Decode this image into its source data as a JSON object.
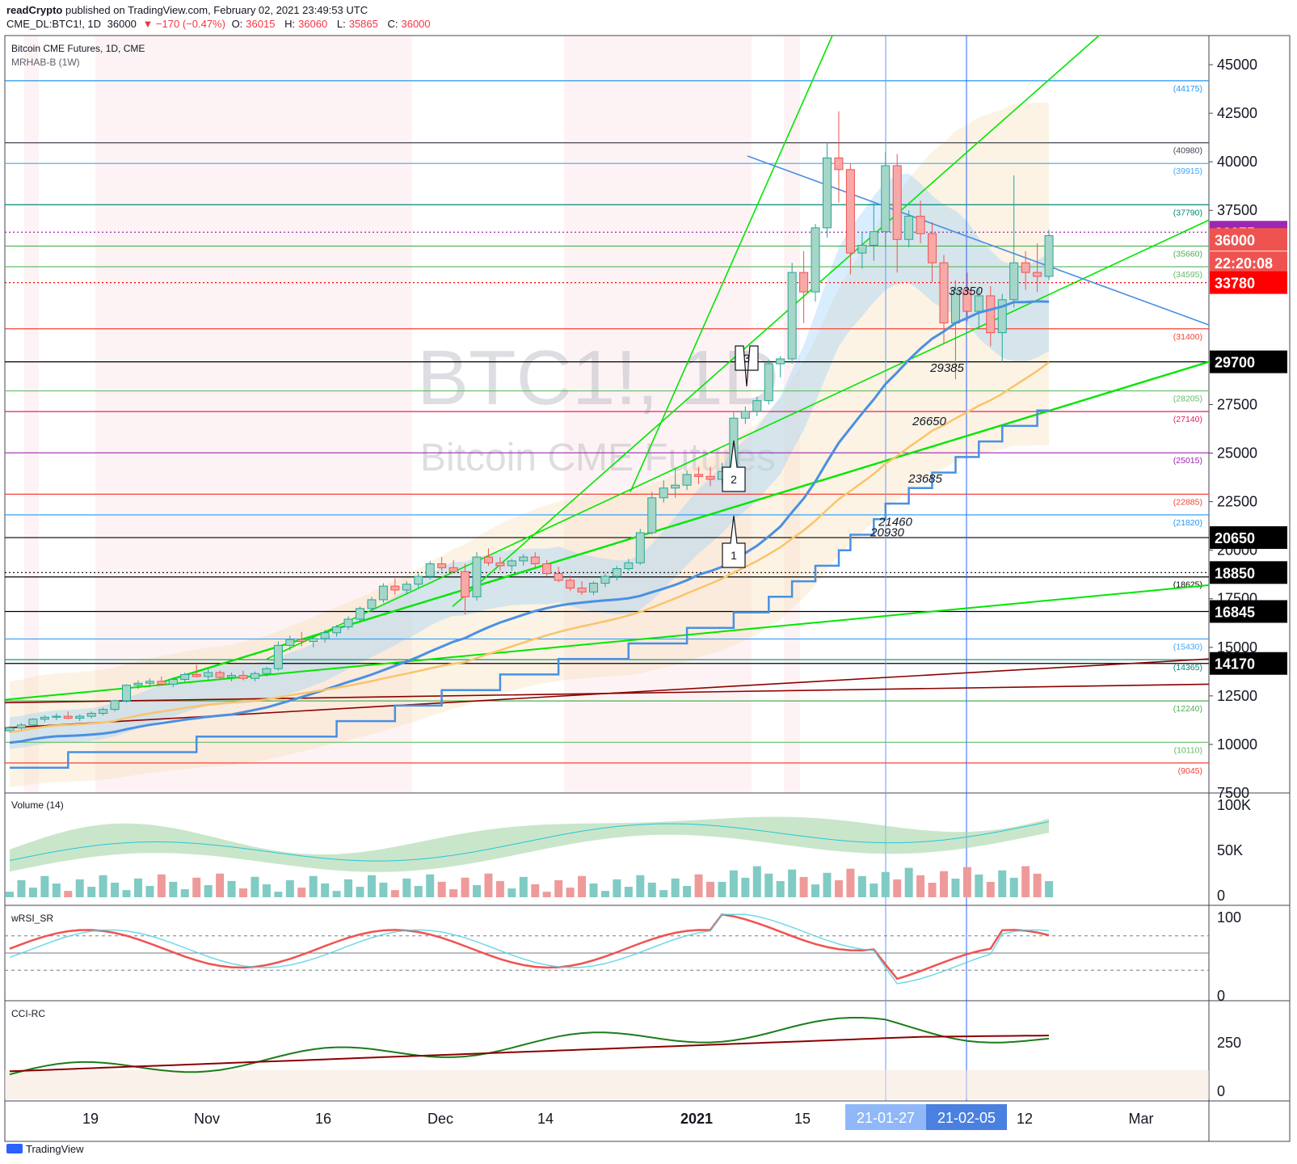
{
  "header": {
    "publisher": "readCrypto",
    "published_text": "published on TradingView.com, February 02, 2021 23:49:53 UTC",
    "symbol_line": "CME_DL:BTC1!, 1D",
    "last": "36000",
    "change": "▼ −170 (−0.47%)",
    "o_label": "O:",
    "o": "36015",
    "h_label": "H:",
    "h": "36060",
    "l_label": "L:",
    "l": "35865",
    "c_label": "C:",
    "c": "36000"
  },
  "main_pane": {
    "title": "Bitcoin CME Futures, 1D, CME",
    "indicator": "MRHAB-B (1W)",
    "watermark_symbol": "BTC1!, 1D",
    "watermark_name": "Bitcoin CME Futures"
  },
  "volume_pane": {
    "title": "Volume (14)",
    "ticks": [
      "100K",
      "50K",
      "0"
    ]
  },
  "rsi_pane": {
    "title": "wRSI_SR",
    "ticks": [
      "100",
      "0"
    ]
  },
  "cci_pane": {
    "title": "CCI-RC",
    "ticks": [
      "250",
      "0"
    ]
  },
  "time_axis": {
    "labels": [
      "19",
      "Nov",
      "16",
      "Dec",
      "14",
      "2021",
      "15",
      "12",
      "Mar"
    ],
    "badges": [
      "21-01-27",
      "21-02-05"
    ]
  },
  "price_axis": {
    "ticks": [
      "45000",
      "42500",
      "40000",
      "37500",
      "27500",
      "25000",
      "22500",
      "20000",
      "17500",
      "15000",
      "12500",
      "10000",
      "7500"
    ],
    "labels": [
      {
        "text": "36375",
        "bg": "#9c27b0",
        "fg": "#ffffff"
      },
      {
        "text": "36000",
        "bg": "#ef5350",
        "fg": "#ffffff"
      },
      {
        "text": "22:20:08",
        "bg": "#ef5350",
        "fg": "#ffffff"
      },
      {
        "text": "33780",
        "bg": "#ff0000",
        "fg": "#ffffff"
      },
      {
        "text": "29700",
        "bg": "#000000",
        "fg": "#ffffff"
      },
      {
        "text": "20650",
        "bg": "#000000",
        "fg": "#ffffff"
      },
      {
        "text": "18850",
        "bg": "#000000",
        "fg": "#ffffff"
      },
      {
        "text": "16845",
        "bg": "#000000",
        "fg": "#ffffff"
      },
      {
        "text": "14170",
        "bg": "#000000",
        "fg": "#ffffff"
      }
    ]
  },
  "chart_data": {
    "type": "candlestick",
    "title": "Bitcoin CME Futures, 1D, CME",
    "y_range": [
      7500,
      46500
    ],
    "horizontal_levels": [
      {
        "value": 44175,
        "label": "(44175)",
        "color": "#2196f3"
      },
      {
        "value": 40980,
        "label": "(40980)",
        "color": "#434651"
      },
      {
        "value": 39915,
        "label": "(39915)",
        "color": "#42a5f5"
      },
      {
        "value": 37790,
        "label": "(37790)",
        "color": "#00897b"
      },
      {
        "value": 35660,
        "label": "(35660)",
        "color": "#4caf50"
      },
      {
        "value": 34595,
        "label": "(34595)",
        "color": "#66bb6a"
      },
      {
        "value": 31400,
        "label": "(31400)",
        "color": "#f44336"
      },
      {
        "value": 28205,
        "label": "(28205)",
        "color": "#66bb6a"
      },
      {
        "value": 27140,
        "label": "(27140)",
        "color": "#e91e63"
      },
      {
        "value": 25015,
        "label": "(25015)",
        "color": "#9c27b0"
      },
      {
        "value": 22885,
        "label": "(22885)",
        "color": "#f44336"
      },
      {
        "value": 21820,
        "label": "(21820)",
        "color": "#2196f3"
      },
      {
        "value": 18625,
        "label": "(18625)",
        "color": "#000000"
      },
      {
        "value": 15430,
        "label": "(15430)",
        "color": "#42a5f5"
      },
      {
        "value": 14365,
        "label": "(14365)",
        "color": "#00897b"
      },
      {
        "value": 12240,
        "label": "(12240)",
        "color": "#4caf50"
      },
      {
        "value": 10110,
        "label": "(10110)",
        "color": "#66bb6a"
      },
      {
        "value": 9045,
        "label": "(9045)",
        "color": "#f44336"
      }
    ],
    "extra_levels": [
      {
        "value": 36375,
        "color": "#9c27b0"
      },
      {
        "value": 33780,
        "color": "#ff0000"
      },
      {
        "value": 29700,
        "color": "#000000"
      },
      {
        "value": 20650,
        "color": "#000000"
      },
      {
        "value": 18850,
        "color": "#000000"
      },
      {
        "value": 16845,
        "color": "#000000"
      },
      {
        "value": 14170,
        "color": "#000000"
      }
    ],
    "annotations": [
      {
        "text": "33350",
        "value": 33350
      },
      {
        "text": "29385",
        "value": 29385
      },
      {
        "text": "26650",
        "value": 26650
      },
      {
        "text": "23685",
        "value": 23685
      },
      {
        "text": "21460",
        "value": 21460
      },
      {
        "text": "20930",
        "value": 20930
      }
    ],
    "callouts": [
      "1",
      "2",
      "3"
    ],
    "candles": [
      [
        10700,
        10950,
        10600,
        10850
      ],
      [
        10850,
        11100,
        10750,
        11000
      ],
      [
        11000,
        11350,
        10950,
        11300
      ],
      [
        11300,
        11500,
        11150,
        11400
      ],
      [
        11400,
        11600,
        11250,
        11450
      ],
      [
        11450,
        11700,
        11300,
        11350
      ],
      [
        11350,
        11550,
        11200,
        11450
      ],
      [
        11450,
        11700,
        11350,
        11600
      ],
      [
        11600,
        11900,
        11500,
        11800
      ],
      [
        11800,
        12300,
        11700,
        12250
      ],
      [
        12250,
        13100,
        12150,
        13050
      ],
      [
        13050,
        13300,
        12850,
        13150
      ],
      [
        13150,
        13400,
        12950,
        13250
      ],
      [
        13250,
        13500,
        13050,
        13100
      ],
      [
        13100,
        13450,
        12950,
        13350
      ],
      [
        13350,
        13700,
        13200,
        13600
      ],
      [
        13600,
        14100,
        13450,
        13500
      ],
      [
        13500,
        13900,
        13300,
        13700
      ],
      [
        13700,
        13800,
        13350,
        13450
      ],
      [
        13450,
        13700,
        13250,
        13550
      ],
      [
        13550,
        13800,
        13300,
        13400
      ],
      [
        13400,
        13750,
        13250,
        13650
      ],
      [
        13650,
        14000,
        13500,
        13900
      ],
      [
        13900,
        15300,
        13800,
        15100
      ],
      [
        15100,
        15600,
        14850,
        15400
      ],
      [
        15400,
        15800,
        15050,
        15300
      ],
      [
        15300,
        15600,
        15000,
        15450
      ],
      [
        15450,
        15900,
        15250,
        15750
      ],
      [
        15750,
        16150,
        15550,
        16050
      ],
      [
        16050,
        16600,
        15900,
        16450
      ],
      [
        16450,
        17100,
        16300,
        17000
      ],
      [
        17000,
        17600,
        16800,
        17450
      ],
      [
        17450,
        18300,
        17300,
        18150
      ],
      [
        18150,
        18550,
        17700,
        17950
      ],
      [
        17950,
        18400,
        17750,
        18250
      ],
      [
        18250,
        18800,
        18050,
        18650
      ],
      [
        18650,
        19450,
        18500,
        19300
      ],
      [
        19300,
        19650,
        18950,
        19100
      ],
      [
        19100,
        19500,
        18850,
        18900
      ],
      [
        18900,
        19300,
        16700,
        17600
      ],
      [
        17600,
        19900,
        17400,
        19650
      ],
      [
        19650,
        20100,
        19200,
        19350
      ],
      [
        19350,
        19650,
        18950,
        19200
      ],
      [
        19200,
        19550,
        18950,
        19450
      ],
      [
        19450,
        19800,
        19200,
        19650
      ],
      [
        19650,
        19900,
        19100,
        19300
      ],
      [
        19300,
        19500,
        18650,
        18800
      ],
      [
        18800,
        19150,
        18350,
        18450
      ],
      [
        18450,
        18700,
        17900,
        18050
      ],
      [
        18050,
        18400,
        17700,
        17850
      ],
      [
        17850,
        18400,
        17700,
        18300
      ],
      [
        18300,
        18800,
        18100,
        18650
      ],
      [
        18650,
        19200,
        18450,
        19050
      ],
      [
        19050,
        19550,
        18950,
        19350
      ],
      [
        19350,
        21100,
        19250,
        20900
      ],
      [
        20900,
        23000,
        20800,
        22700
      ],
      [
        22700,
        23600,
        22450,
        23200
      ],
      [
        23200,
        24200,
        22700,
        23350
      ],
      [
        23350,
        24100,
        23100,
        23900
      ],
      [
        23900,
        24300,
        23400,
        23800
      ],
      [
        23800,
        24300,
        23300,
        23650
      ],
      [
        23650,
        24500,
        23400,
        24050
      ],
      [
        24050,
        27100,
        23800,
        26800
      ],
      [
        26800,
        27400,
        26500,
        27150
      ],
      [
        27150,
        27900,
        26900,
        27700
      ],
      [
        27700,
        29800,
        27500,
        29600
      ],
      [
        29600,
        30000,
        28900,
        29850
      ],
      [
        29850,
        34800,
        29600,
        34300
      ],
      [
        34300,
        35400,
        31700,
        33300
      ],
      [
        33300,
        36800,
        32800,
        36600
      ],
      [
        36600,
        41000,
        36100,
        40200
      ],
      [
        40200,
        42600,
        37900,
        39600
      ],
      [
        39600,
        39900,
        34200,
        35300
      ],
      [
        35300,
        36400,
        34500,
        35700
      ],
      [
        35700,
        37900,
        34900,
        36400
      ],
      [
        36400,
        40500,
        35600,
        39800
      ],
      [
        39800,
        40400,
        34300,
        36000
      ],
      [
        36000,
        37500,
        35600,
        37200
      ],
      [
        37200,
        38000,
        35800,
        36300
      ],
      [
        36300,
        36900,
        33800,
        34800
      ],
      [
        34800,
        35200,
        30600,
        31700
      ],
      [
        31700,
        33900,
        28800,
        33400
      ],
      [
        33400,
        34300,
        31800,
        32300
      ],
      [
        32300,
        33500,
        31400,
        33100
      ],
      [
        33100,
        33600,
        30500,
        31200
      ],
      [
        31200,
        33200,
        29700,
        32900
      ],
      [
        32900,
        39300,
        32500,
        34800
      ],
      [
        34800,
        35400,
        33400,
        34300
      ],
      [
        34300,
        35800,
        33300,
        34100
      ],
      [
        34100,
        36500,
        33900,
        36200
      ]
    ],
    "volume_pane": {
      "ticks": [
        "100K",
        "50K",
        "0"
      ]
    },
    "rsi_pane": {
      "ticks": [
        "100",
        "0"
      ]
    },
    "cci_pane": {
      "ticks": [
        "250",
        "0"
      ]
    }
  }
}
